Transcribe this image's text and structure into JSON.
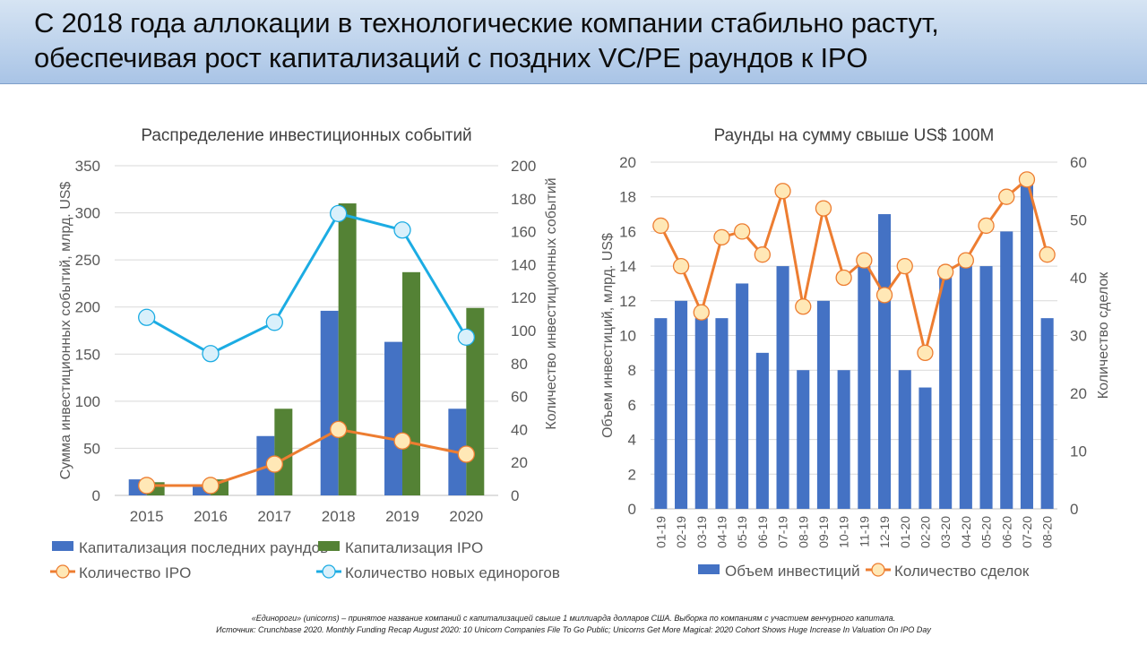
{
  "header": {
    "title_line_1": "С 2018 года аллокации в технологические компании стабильно растут,",
    "title_line_2": "обеспечивая рост капитализаций с поздних VC/PE раундов к IPO"
  },
  "chart_data": [
    {
      "type": "bar",
      "title": "Распределение инвестиционных событий",
      "categories": [
        "2015",
        "2016",
        "2017",
        "2018",
        "2019",
        "2020"
      ],
      "ylabel": "Сумма инвестиционных событий, млрд. US$",
      "y2label": "Количество инвестиционных событий",
      "ylim": [
        0,
        350
      ],
      "y_ticks": [
        0,
        50,
        100,
        150,
        200,
        250,
        300,
        350
      ],
      "y2lim": [
        0,
        200
      ],
      "y2_ticks": [
        0,
        20,
        40,
        60,
        80,
        100,
        120,
        140,
        160,
        180,
        200
      ],
      "grid": true,
      "legend_position": "bottom",
      "series": [
        {
          "name": "Капитализация последних раундов",
          "kind": "bar",
          "axis": "left",
          "color": "#4472c4",
          "values": [
            17,
            9,
            63,
            196,
            163,
            92
          ]
        },
        {
          "name": "Капитализация IPO",
          "kind": "bar",
          "axis": "left",
          "color": "#548235",
          "values": [
            14,
            17,
            92,
            310,
            237,
            199
          ]
        },
        {
          "name": "Количество IPO",
          "kind": "line",
          "axis": "right",
          "color": "#ed7d31",
          "marker_fill": "#ffe8b6",
          "marker_stroke": "#ed7d31",
          "values": [
            6,
            6,
            19,
            40,
            33,
            25
          ]
        },
        {
          "name": "Количество новых единорогов",
          "kind": "line",
          "axis": "right",
          "color": "#1cace3",
          "marker_fill": "#d9f0fb",
          "marker_stroke": "#1cace3",
          "values": [
            108,
            86,
            105,
            171,
            161,
            96
          ]
        }
      ]
    },
    {
      "type": "bar",
      "title": "Раунды на сумму свыше US$ 100M",
      "categories": [
        "01-19",
        "02-19",
        "03-19",
        "04-19",
        "05-19",
        "06-19",
        "07-19",
        "08-19",
        "09-19",
        "10-19",
        "11-19",
        "12-19",
        "01-20",
        "02-20",
        "03-20",
        "04-20",
        "05-20",
        "06-20",
        "07-20",
        "08-20"
      ],
      "ylabel": "Объем инвестиций, млрд. US$",
      "y2label": "Количество сделок",
      "ylim": [
        0,
        20
      ],
      "y_ticks": [
        0,
        2,
        4,
        6,
        8,
        10,
        12,
        14,
        16,
        18,
        20
      ],
      "y2lim": [
        0,
        60
      ],
      "y2_ticks": [
        0,
        10,
        20,
        30,
        40,
        50,
        60
      ],
      "grid": true,
      "legend_position": "bottom",
      "series": [
        {
          "name": "Объем инвестиций",
          "kind": "bar",
          "axis": "left",
          "color": "#4472c4",
          "values": [
            11,
            12,
            11,
            11,
            13,
            9,
            14,
            8,
            12,
            8,
            14,
            17,
            8,
            7,
            14,
            14,
            14,
            16,
            19,
            11
          ]
        },
        {
          "name": "Количество сделок",
          "kind": "line",
          "axis": "right",
          "color": "#ed7d31",
          "marker_fill": "#ffe8b6",
          "marker_stroke": "#ed7d31",
          "values": [
            49,
            42,
            34,
            47,
            48,
            44,
            55,
            35,
            52,
            40,
            43,
            37,
            42,
            27,
            41,
            43,
            49,
            54,
            57,
            44
          ]
        }
      ]
    }
  ],
  "footnotes": {
    "line_1": "«Единороги» (unicorns) – принятое название компаний с капитализацией свыше 1 миллиарда долларов США. Выборка по компаниям с участием венчурного капитала.",
    "line_2": "Источник: Crunchbase 2020. Monthly Funding Recap August 2020: 10 Unicorn Companies File To Go Public; Unicorns Get More Magical: 2020 Cohort Shows Huge Increase In Valuation On IPO Day"
  }
}
